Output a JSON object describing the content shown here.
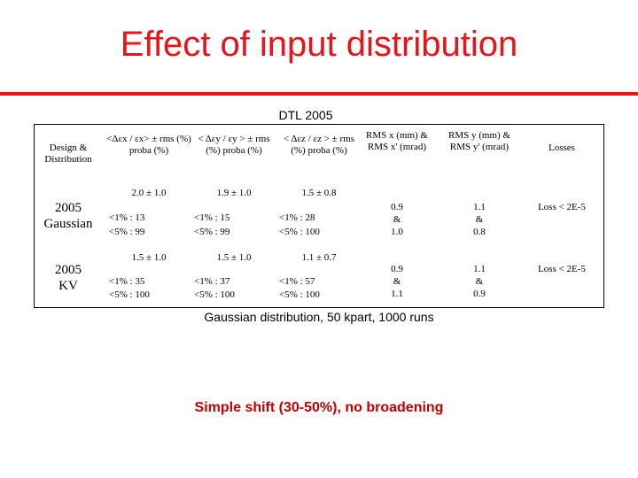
{
  "slide": {
    "title": "Effect of input distribution",
    "table_title": "DTL 2005",
    "note": "Gaussian distribution, 50 kpart, 1000 runs",
    "conclusion": "Simple shift (30-50%), no broadening"
  },
  "table": {
    "headers": {
      "design": "Design & Distribution",
      "ex": "<Δεx / εx> ± rms (%) proba (%)",
      "ey": "< Δεy / εy > ± rms (%) proba (%)",
      "ez": "< Δεz / εz > ± rms (%) proba (%)",
      "rms_x": "RMS x (mm) & RMS x' (mrad)",
      "rms_y": "RMS y (mm) & RMS y' (mrad)",
      "losses": "Losses"
    },
    "rows": [
      {
        "label_line1": "2005",
        "label_line2": "Gaussian",
        "ex_mean": "2.0 ± 1.0",
        "ex_p1": "<1% : 13",
        "ex_p5": "<5% : 99",
        "ey_mean": "1.9 ± 1.0",
        "ey_p1": "<1% : 15",
        "ey_p5": "<5% : 99",
        "ez_mean": "1.5 ± 0.8",
        "ez_p1": "<1% : 28",
        "ez_p5": "<5% : 100",
        "rms_x_1": "0.9",
        "rms_x_amp": "&",
        "rms_x_2": "1.0",
        "rms_y_1": "1.1",
        "rms_y_amp": "&",
        "rms_y_2": "0.8",
        "losses": "Loss < 2E-5"
      },
      {
        "label_line1": "2005",
        "label_line2": "KV",
        "ex_mean": "1.5 ± 1.0",
        "ex_p1": "<1% : 35",
        "ex_p5": "<5% : 100",
        "ey_mean": "1.5 ± 1.0",
        "ey_p1": "<1% : 37",
        "ey_p5": "<5% : 100",
        "ez_mean": "1.1 ± 0.7",
        "ez_p1": "<1% : 57",
        "ez_p5": "<5% : 100",
        "rms_x_1": "0.9",
        "rms_x_amp": "&",
        "rms_x_2": "1.1",
        "rms_y_1": "1.1",
        "rms_y_amp": "&",
        "rms_y_2": "0.9",
        "losses": "Loss < 2E-5"
      }
    ]
  },
  "colors": {
    "title": "#e8141b",
    "conclusion": "#c00000"
  }
}
